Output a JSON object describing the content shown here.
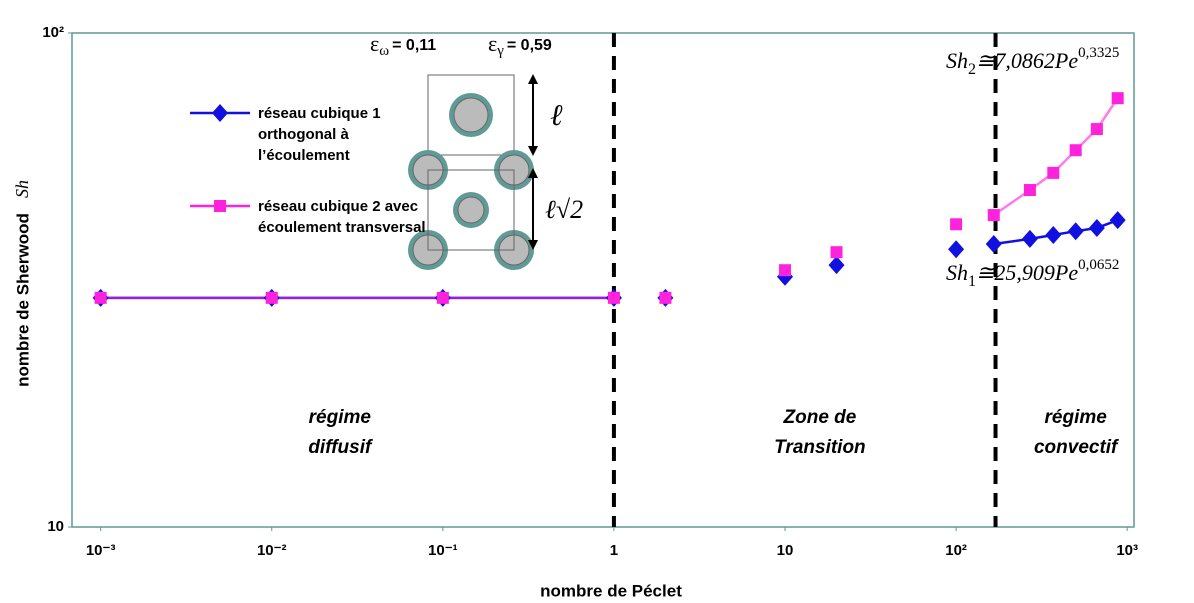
{
  "chart_data": {
    "type": "scatter",
    "xlabel": "nombre de Péclet",
    "ylabel": "nombre de Sherwood",
    "ylabel_symbol": "Sh",
    "log_x": true,
    "log_y": true,
    "xlim": [
      0.00068,
      1096
    ],
    "ylim": [
      10,
      100
    ],
    "xticks": [
      {
        "value": 0.001,
        "label": "10⁻³"
      },
      {
        "value": 0.01,
        "label": "10⁻²"
      },
      {
        "value": 0.1,
        "label": "10⁻¹"
      },
      1,
      10,
      {
        "value": 100,
        "label": "10²"
      },
      {
        "value": 1000,
        "label": "10³"
      }
    ],
    "yticks": [
      10,
      {
        "value": 100,
        "label": "10²"
      }
    ],
    "x": [
      0.001,
      0.01,
      0.1,
      1,
      2,
      10,
      20,
      100,
      166,
      270,
      370,
      500,
      665,
      880
    ],
    "series": [
      {
        "name": "réseau cubique 1 orthogonal à l’écoulement",
        "color": "#1010e0",
        "marker": "diamond",
        "values": [
          29.1,
          29.1,
          29.1,
          29.1,
          29.1,
          32.1,
          33.9,
          36.5,
          37.4,
          38.3,
          39.0,
          39.7,
          40.3,
          41.8
        ]
      },
      {
        "name": "réseau cubique 2 avec écoulement transversal",
        "color": "#ff22dd",
        "marker": "square",
        "values": [
          29.1,
          29.1,
          29.1,
          29.1,
          29.1,
          33.1,
          36.0,
          41.0,
          42.8,
          48.1,
          52.1,
          57.9,
          63.9,
          73.8
        ]
      }
    ],
    "vlines": [
      1,
      170
    ],
    "annotations": [
      {
        "lines": [
          "régime",
          "diffusif"
        ],
        "x": 0.025,
        "y": 15.5
      },
      {
        "lines": [
          "Zone de",
          "Transition"
        ],
        "x": 16,
        "y": 15.5
      },
      {
        "lines": [
          "régime",
          "convectif"
        ],
        "x": 500,
        "y": 15.5
      }
    ],
    "equations": [
      {
        "base": "Sh",
        "sub": "2",
        "rest": "≅7,0862Pe",
        "sup": "0,3325"
      },
      {
        "base": "Sh",
        "sub": "1",
        "rest": "≅25,909Pe",
        "sup": "0,0652"
      }
    ],
    "porosity": [
      {
        "symbol": "ε",
        "sub": "ω",
        "text": "= 0,11"
      },
      {
        "symbol": "ε",
        "sub": "γ",
        "text": "= 0,59"
      }
    ],
    "dimension_labels": [
      "ℓ",
      "ℓ√2"
    ]
  }
}
